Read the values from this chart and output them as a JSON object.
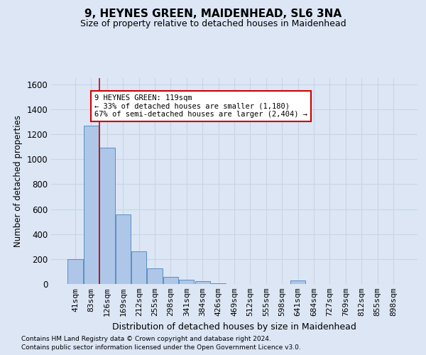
{
  "title": "9, HEYNES GREEN, MAIDENHEAD, SL6 3NA",
  "subtitle": "Size of property relative to detached houses in Maidenhead",
  "xlabel": "Distribution of detached houses by size in Maidenhead",
  "ylabel": "Number of detached properties",
  "footnote1": "Contains HM Land Registry data © Crown copyright and database right 2024.",
  "footnote2": "Contains public sector information licensed under the Open Government Licence v3.0.",
  "categories": [
    "41sqm",
    "83sqm",
    "126sqm",
    "169sqm",
    "212sqm",
    "255sqm",
    "298sqm",
    "341sqm",
    "384sqm",
    "426sqm",
    "469sqm",
    "512sqm",
    "555sqm",
    "598sqm",
    "641sqm",
    "684sqm",
    "727sqm",
    "769sqm",
    "812sqm",
    "855sqm",
    "898sqm"
  ],
  "values": [
    200,
    1270,
    1090,
    560,
    260,
    125,
    55,
    35,
    20,
    5,
    0,
    0,
    0,
    0,
    30,
    0,
    0,
    0,
    0,
    0,
    0
  ],
  "bar_color": "#aec6e8",
  "bar_edge_color": "#5a8fc2",
  "annotation_line1": "9 HEYNES GREEN: 119sqm",
  "annotation_line2": "← 33% of detached houses are smaller (1,180)",
  "annotation_line3": "67% of semi-detached houses are larger (2,404) →",
  "vline_x": 1.5,
  "vline_color": "#cc0000",
  "annotation_box_color": "#ffffff",
  "annotation_box_edge": "#cc0000",
  "ylim": [
    0,
    1650
  ],
  "yticks": [
    0,
    200,
    400,
    600,
    800,
    1000,
    1200,
    1400,
    1600
  ],
  "grid_color": "#c8d4e8",
  "bg_color": "#dce6f5",
  "fig_bg_color": "#dce6f5"
}
